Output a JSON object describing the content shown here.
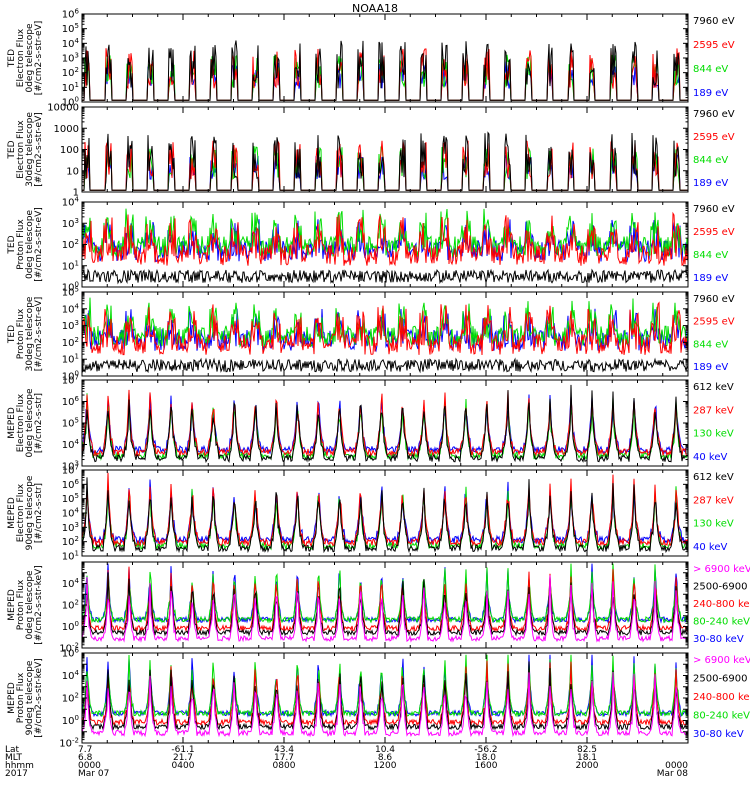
{
  "title": "NOAA18",
  "colors": {
    "black": "#000000",
    "red": "#ff0000",
    "green": "#00dd00",
    "blue": "#0000ff",
    "magenta": "#ff00ff"
  },
  "chart_data": [
    {
      "type": "line",
      "ylabel_lines": [
        "TED",
        "Electron Flux",
        "0deg telescope",
        "[#/cm2-s-str-eV]"
      ],
      "y_scale": "log",
      "ylim": [
        1,
        1000000
      ],
      "y_ticks": [
        {
          "v": 1,
          "exp": "0"
        },
        {
          "v": 10,
          "exp": "1"
        },
        {
          "v": 100,
          "exp": "2"
        },
        {
          "v": 1000,
          "exp": "3"
        },
        {
          "v": 10000,
          "exp": "4"
        },
        {
          "v": 100000,
          "exp": "5"
        },
        {
          "v": 1000000,
          "exp": "6"
        }
      ],
      "series": [
        {
          "name": "7960 eV",
          "color": "#000000"
        },
        {
          "name": "2595 eV",
          "color": "#ff0000"
        },
        {
          "name": "844 eV",
          "color": "#00dd00"
        },
        {
          "name": "189 eV",
          "color": "#0000ff"
        }
      ]
    },
    {
      "type": "line",
      "ylabel_lines": [
        "TED",
        "Electron Flux",
        "30deg telescope",
        "[#/cm2-s-str-eV]"
      ],
      "y_scale": "log",
      "ylim": [
        1,
        10000
      ],
      "y_ticks": [
        {
          "v": 1,
          "label": "1"
        },
        {
          "v": 10,
          "label": "10"
        },
        {
          "v": 100,
          "label": "100"
        },
        {
          "v": 1000,
          "label": "1000"
        },
        {
          "v": 10000,
          "label": "10000"
        }
      ],
      "series": [
        {
          "name": "7960 eV",
          "color": "#000000"
        },
        {
          "name": "2595 eV",
          "color": "#ff0000"
        },
        {
          "name": "844 eV",
          "color": "#00dd00"
        },
        {
          "name": "189 eV",
          "color": "#0000ff"
        }
      ]
    },
    {
      "type": "line",
      "ylabel_lines": [
        "TED",
        "Proton Flux",
        "0deg telescope",
        "[#/cm2-s-str-eV]"
      ],
      "y_scale": "log",
      "ylim": [
        1,
        10000
      ],
      "y_ticks": [
        {
          "v": 1,
          "exp": "0"
        },
        {
          "v": 10,
          "exp": "1"
        },
        {
          "v": 100,
          "exp": "2"
        },
        {
          "v": 1000,
          "exp": "3"
        },
        {
          "v": 10000,
          "exp": "4"
        }
      ],
      "series": [
        {
          "name": "7960 eV",
          "color": "#000000"
        },
        {
          "name": "2595 eV",
          "color": "#ff0000"
        },
        {
          "name": "844 eV",
          "color": "#00dd00"
        },
        {
          "name": "189 eV",
          "color": "#0000ff"
        }
      ]
    },
    {
      "type": "line",
      "ylabel_lines": [
        "TED",
        "Proton Flux",
        "30deg telescope",
        "[#/cm2-s-str-eV]"
      ],
      "y_scale": "log",
      "ylim": [
        1,
        100000
      ],
      "y_ticks": [
        {
          "v": 1,
          "exp": "0"
        },
        {
          "v": 10,
          "exp": "1"
        },
        {
          "v": 100,
          "exp": "2"
        },
        {
          "v": 1000,
          "exp": "3"
        },
        {
          "v": 10000,
          "exp": "4"
        },
        {
          "v": 100000,
          "exp": "5"
        }
      ],
      "series": [
        {
          "name": "7960 eV",
          "color": "#000000"
        },
        {
          "name": "2595 eV",
          "color": "#ff0000"
        },
        {
          "name": "844 eV",
          "color": "#00dd00"
        },
        {
          "name": "189 eV",
          "color": "#0000ff"
        }
      ]
    },
    {
      "type": "line",
      "ylabel_lines": [
        "MEPED",
        "Electron Flux",
        "0deg telescope",
        "[#/cm2-s-str]"
      ],
      "y_scale": "log",
      "ylim": [
        1000,
        10000000
      ],
      "y_ticks": [
        {
          "v": 1000,
          "exp": "3"
        },
        {
          "v": 10000,
          "exp": "4"
        },
        {
          "v": 100000,
          "exp": "5"
        },
        {
          "v": 1000000,
          "exp": "6"
        },
        {
          "v": 10000000,
          "exp": "7"
        }
      ],
      "series": [
        {
          "name": "612 keV",
          "color": "#000000"
        },
        {
          "name": "287 keV",
          "color": "#ff0000"
        },
        {
          "name": "130 keV",
          "color": "#00dd00"
        },
        {
          "name": "40 keV",
          "color": "#0000ff"
        }
      ]
    },
    {
      "type": "line",
      "ylabel_lines": [
        "MEPED",
        "Electron Flux",
        "90deg telescope",
        "[#/cm2-s-str]"
      ],
      "y_scale": "log",
      "ylim": [
        10,
        10000000
      ],
      "y_ticks": [
        {
          "v": 10,
          "exp": "1"
        },
        {
          "v": 100,
          "exp": "2"
        },
        {
          "v": 1000,
          "exp": "3"
        },
        {
          "v": 10000,
          "exp": "4"
        },
        {
          "v": 100000,
          "exp": "5"
        },
        {
          "v": 1000000,
          "exp": "6"
        },
        {
          "v": 10000000,
          "exp": "7"
        }
      ],
      "series": [
        {
          "name": "612 keV",
          "color": "#000000"
        },
        {
          "name": "287 keV",
          "color": "#ff0000"
        },
        {
          "name": "130 keV",
          "color": "#00dd00"
        },
        {
          "name": "40 keV",
          "color": "#0000ff"
        }
      ]
    },
    {
      "type": "line",
      "ylabel_lines": [
        "MEPED",
        "Proton Flux",
        "0deg telescope",
        "[#/cm2-s-str-keV]"
      ],
      "y_scale": "log",
      "ylim": [
        0.01,
        1000000
      ],
      "y_ticks": [
        {
          "v": 0.01,
          "exp": "-2"
        },
        {
          "v": 1,
          "exp": "0"
        },
        {
          "v": 100,
          "exp": "2"
        },
        {
          "v": 10000,
          "exp": "4"
        }
      ],
      "series": [
        {
          "name": "> 6900 keV",
          "color": "#ff00ff"
        },
        {
          "name": "2500-6900",
          "color": "#000000"
        },
        {
          "name": "240-800 ke",
          "color": "#ff0000"
        },
        {
          "name": "80-240 keV",
          "color": "#00dd00"
        },
        {
          "name": "30-80 keV",
          "color": "#0000ff"
        }
      ]
    },
    {
      "type": "line",
      "ylabel_lines": [
        "MEPED",
        "Proton Flux",
        "90deg telescope",
        "[#/cm2-s-str-keV]"
      ],
      "y_scale": "log",
      "ylim": [
        0.01,
        1000000
      ],
      "y_ticks": [
        {
          "v": 0.01,
          "exp": "-2"
        },
        {
          "v": 1,
          "exp": "0"
        },
        {
          "v": 100,
          "exp": "2"
        },
        {
          "v": 10000,
          "exp": "4"
        },
        {
          "v": 1000000,
          "exp": "6"
        }
      ],
      "series": [
        {
          "name": "> 6900 keV",
          "color": "#ff00ff"
        },
        {
          "name": "2500-6900",
          "color": "#000000"
        },
        {
          "name": "240-800 ke",
          "color": "#ff0000"
        },
        {
          "name": "80-240 keV",
          "color": "#00dd00"
        },
        {
          "name": "30-80 keV",
          "color": "#0000ff"
        }
      ]
    }
  ],
  "x_axis": {
    "row_labels": [
      "Lat",
      "MLT",
      "hhmm",
      "2017"
    ],
    "ticks": [
      {
        "t": 0,
        "lat": "7.7",
        "mlt": "6.8",
        "hhmm": "0000",
        "date": "Mar 07"
      },
      {
        "t": 240,
        "lat": "-61.1",
        "mlt": "21.7",
        "hhmm": "0400",
        "date": ""
      },
      {
        "t": 480,
        "lat": "43.4",
        "mlt": "17.7",
        "hhmm": "0800",
        "date": ""
      },
      {
        "t": 720,
        "lat": "10.4",
        "mlt": "8.6",
        "hhmm": "1200",
        "date": ""
      },
      {
        "t": 960,
        "lat": "-56.2",
        "mlt": "18.0",
        "hhmm": "1600",
        "date": ""
      },
      {
        "t": 1200,
        "lat": "82.5",
        "mlt": "18.1",
        "hhmm": "2000",
        "date": ""
      },
      {
        "t": 1440,
        "lat": "",
        "mlt": "",
        "hhmm": "0000",
        "date": "Mar 08"
      }
    ],
    "range_minutes": [
      0,
      1440
    ]
  }
}
